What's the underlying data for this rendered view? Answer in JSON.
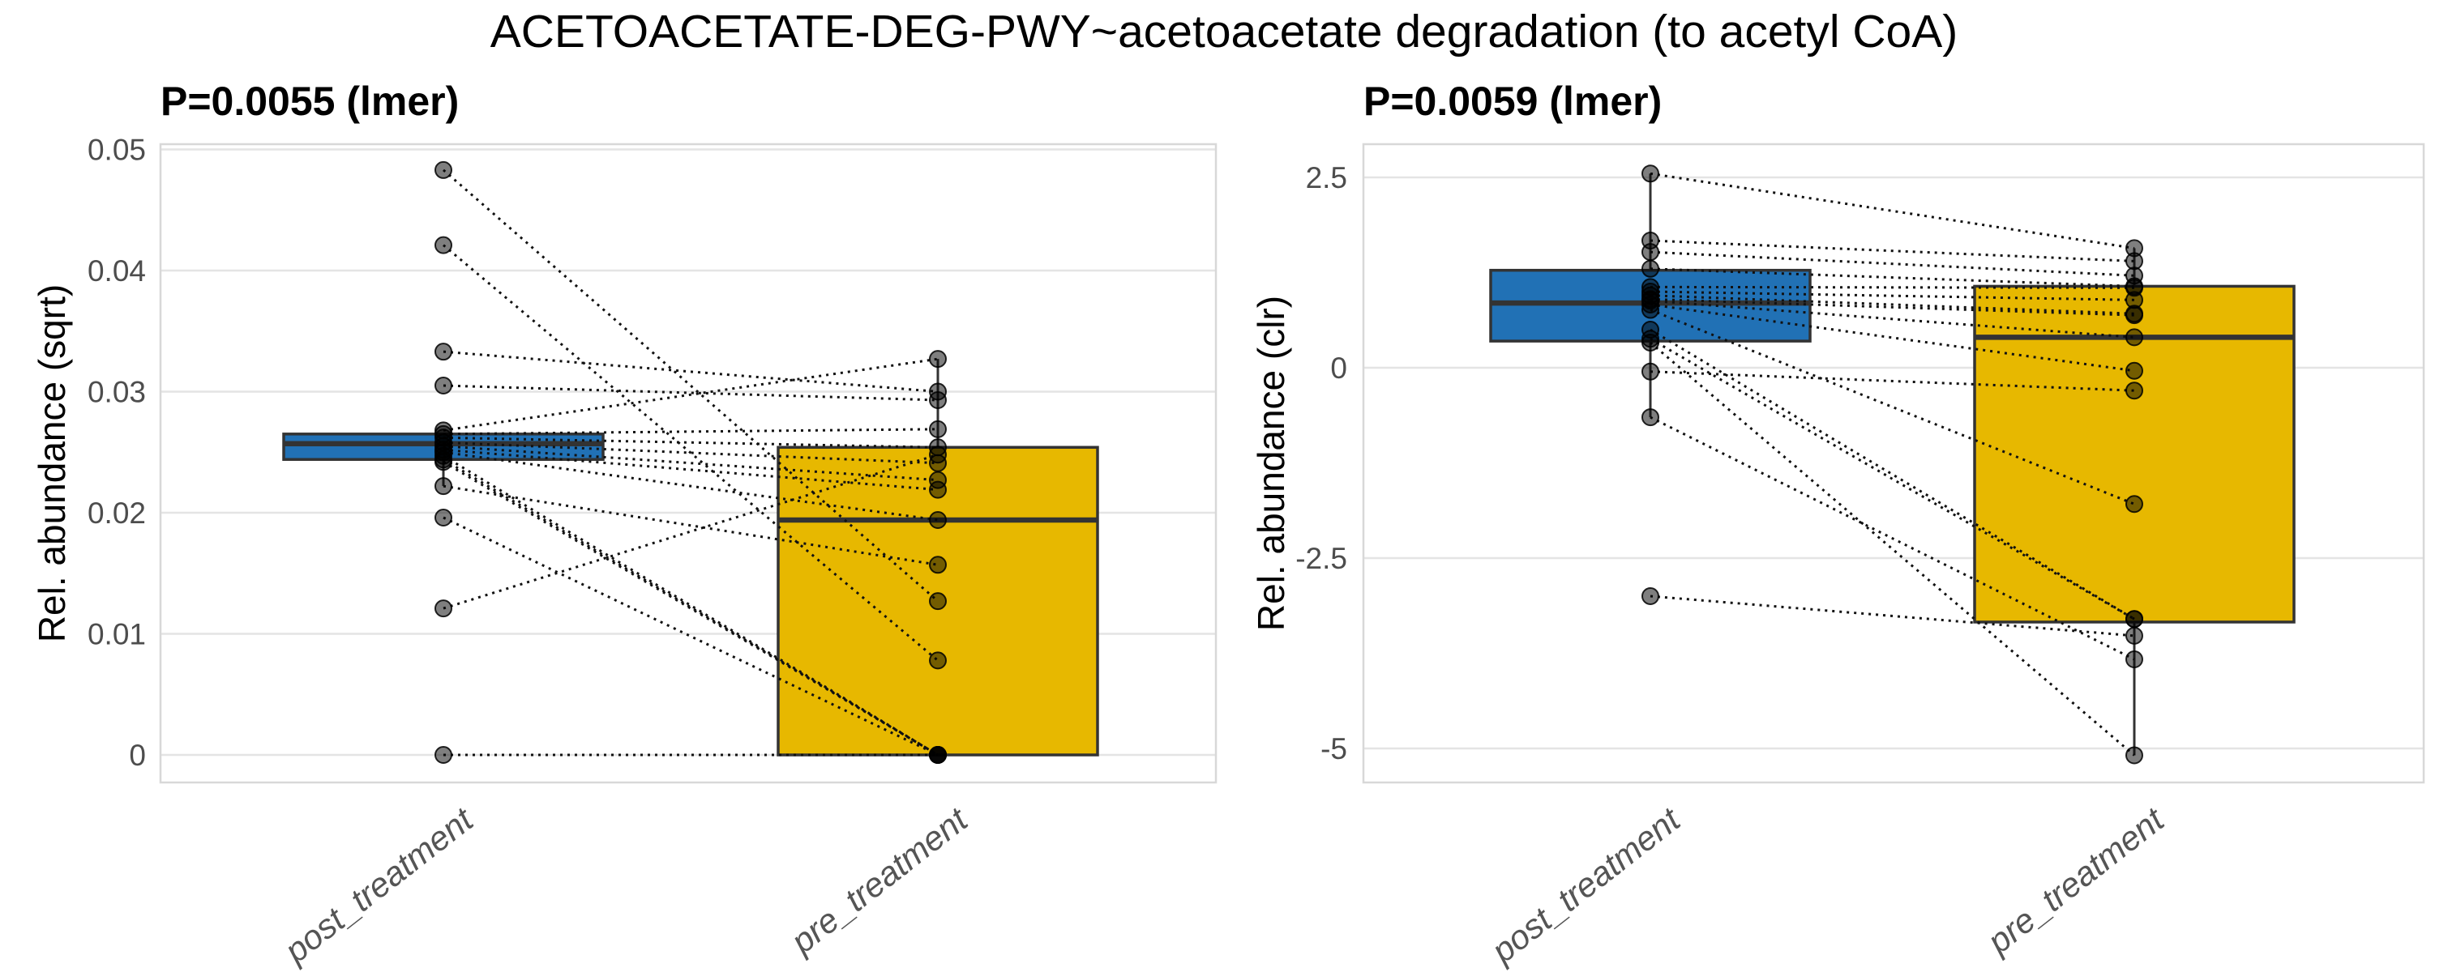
{
  "title": "ACETOACETATE-DEG-PWY~acetoacetate degradation (to acetyl CoA)",
  "colors": {
    "box_stroke": "#333333",
    "gridline": "#E4E4E4",
    "panel_border": "#D8D8D8",
    "tick_label": "#4D4D4D",
    "category_label": "#555555",
    "pair_line": "#111111",
    "point_fill": "#000000",
    "point_stroke": "#000000",
    "blue": "#2171B5",
    "yellow": "#E7B800"
  },
  "chart_data": [
    {
      "type": "box",
      "subtitle": "P=0.0055 (lmer)",
      "ylabel": "Rel. abundance (sqrt)",
      "categories": [
        "post_treatment",
        "pre_treatment"
      ],
      "ytick_labels": [
        "0.05",
        "0.04",
        "0.03",
        "0.02",
        "0.01",
        "0"
      ],
      "ytick_values": [
        0.05,
        0.04,
        0.03,
        0.02,
        0.01,
        0
      ],
      "ylim": [
        -0.0023,
        0.0505
      ],
      "grid": "major-horizontal",
      "legend": "none",
      "box_colors": [
        "#2171B5",
        "#E7B800"
      ],
      "boxes": [
        {
          "category": "post_treatment",
          "q1": 0.0244,
          "median": 0.0257,
          "q3": 0.0265,
          "whisker_low": 0.0222,
          "whisker_high": 0.0265
        },
        {
          "category": "pre_treatment",
          "q1": 0.0,
          "median": 0.0194,
          "q3": 0.0254,
          "whisker_low": 0.0,
          "whisker_high": 0.0327
        }
      ],
      "pairs": [
        [
          0.0483,
          0.0127
        ],
        [
          0.0421,
          0.0078
        ],
        [
          0.0333,
          0.03
        ],
        [
          0.0305,
          0.0293
        ],
        [
          0.0268,
          0.0327
        ],
        [
          0.0265,
          0.0269
        ],
        [
          0.0262,
          0.0254
        ],
        [
          0.0258,
          0.0241
        ],
        [
          0.0255,
          0.0227
        ],
        [
          0.0252,
          0.0219
        ],
        [
          0.025,
          0.0194
        ],
        [
          0.0247,
          0.0
        ],
        [
          0.0244,
          0.0
        ],
        [
          0.0242,
          0.0
        ],
        [
          0.0222,
          0.0157
        ],
        [
          0.0196,
          0.0
        ],
        [
          0.0121,
          0.0248
        ],
        [
          0.0,
          0.0
        ]
      ]
    },
    {
      "type": "box",
      "subtitle": "P=0.0059 (lmer)",
      "ylabel": "Rel. abundance (clr)",
      "categories": [
        "post_treatment",
        "pre_treatment"
      ],
      "ytick_labels": [
        "2.5",
        "0",
        "-2.5",
        "-5"
      ],
      "ytick_values": [
        2.5,
        0,
        -2.5,
        -5
      ],
      "ylim": [
        -5.45,
        2.94
      ],
      "grid": "major-horizontal",
      "legend": "none",
      "box_colors": [
        "#2171B5",
        "#E7B800"
      ],
      "boxes": [
        {
          "category": "post_treatment",
          "q1": 0.35,
          "median": 0.85,
          "q3": 1.28,
          "whisker_low": -0.65,
          "whisker_high": 2.55
        },
        {
          "category": "pre_treatment",
          "q1": -3.34,
          "median": 0.4,
          "q3": 1.07,
          "whisker_low": -5.09,
          "whisker_high": 1.57
        }
      ],
      "pairs": [
        [
          2.55,
          1.57
        ],
        [
          1.67,
          1.4
        ],
        [
          1.52,
          1.21
        ],
        [
          1.3,
          1.07
        ],
        [
          1.06,
          1.05
        ],
        [
          1.0,
          0.89
        ],
        [
          0.95,
          0.71
        ],
        [
          0.9,
          0.69
        ],
        [
          0.88,
          0.4
        ],
        [
          0.83,
          -0.04
        ],
        [
          0.76,
          -1.79
        ],
        [
          0.5,
          -3.3
        ],
        [
          0.38,
          -3.3
        ],
        [
          0.33,
          -5.09
        ],
        [
          -0.05,
          -0.3
        ],
        [
          -0.65,
          -3.83
        ],
        [
          -3.0,
          -3.52
        ]
      ]
    }
  ]
}
